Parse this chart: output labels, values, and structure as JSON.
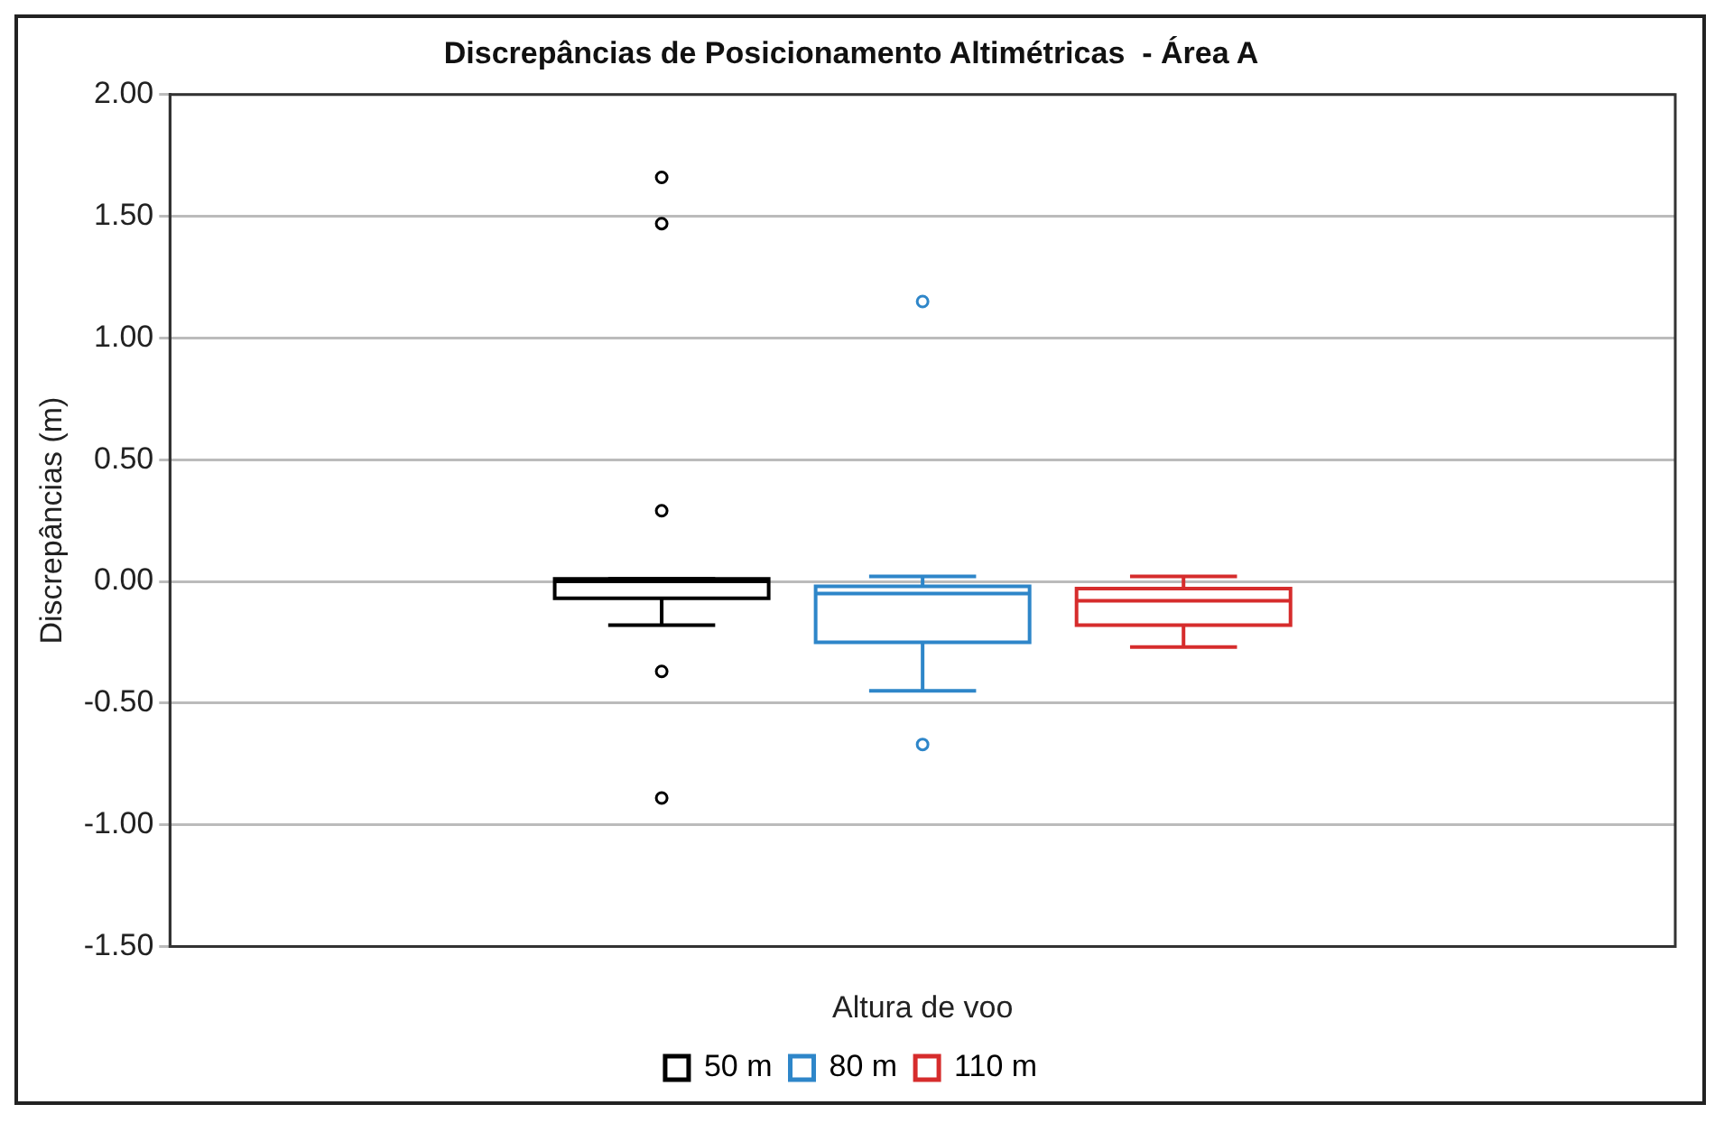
{
  "chart_data": {
    "type": "box",
    "title": "Discrepâncias de Posicionamento Altimétricas  - Área A",
    "xlabel": "Altura de voo",
    "ylabel": "Discrepâncias (m)",
    "categories": [
      null
    ],
    "ylim": [
      -1.5,
      2
    ],
    "yticks": [
      {
        "value": -1.5,
        "label": "-1.50"
      },
      {
        "value": -1,
        "label": "-1.00"
      },
      {
        "value": -0.5,
        "label": "-0.50"
      },
      {
        "value": 0,
        "label": "0.00"
      },
      {
        "value": 0.5,
        "label": "0.50"
      },
      {
        "value": 1,
        "label": "1.00"
      },
      {
        "value": 1.5,
        "label": "1.50"
      },
      {
        "value": 2,
        "label": "2.00"
      }
    ],
    "grid": "y",
    "legend": "bottom",
    "series": [
      {
        "name": "50 m",
        "color": "#000000",
        "boxes": [
          {
            "low": -0.18,
            "q1": -0.07,
            "median": 0.0,
            "q3": 0.01,
            "high": 0.01,
            "outliers": [
              1.66,
              1.47,
              0.29,
              -0.37,
              -0.89
            ]
          }
        ]
      },
      {
        "name": "80 m",
        "color": "#2e86c9",
        "boxes": [
          {
            "low": -0.45,
            "q1": -0.25,
            "median": -0.05,
            "q3": -0.02,
            "high": 0.02,
            "outliers": [
              1.15,
              -0.67
            ]
          }
        ]
      },
      {
        "name": "110 m",
        "color": "#d62c2c",
        "boxes": [
          {
            "low": -0.27,
            "q1": -0.18,
            "median": -0.08,
            "q3": -0.03,
            "high": 0.02
          }
        ]
      }
    ]
  }
}
